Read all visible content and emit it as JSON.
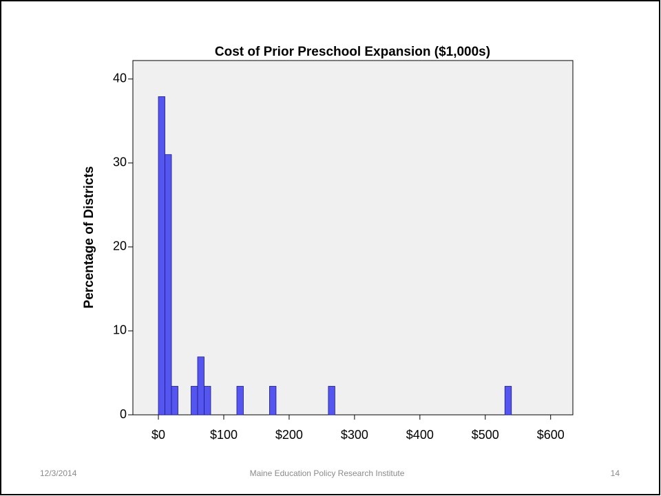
{
  "chart_data": {
    "type": "histogram",
    "title": "Cost of Prior Preschool Expansion ($1,000s)",
    "y_label": "Percentage of Districts",
    "bins": [
      0,
      10,
      20,
      30,
      40,
      50,
      60,
      70,
      80,
      90,
      100,
      110,
      120,
      130,
      140,
      150,
      160,
      170,
      180,
      190,
      200,
      210,
      220,
      230,
      240,
      250,
      260,
      270,
      280,
      290,
      300,
      310,
      320,
      330,
      340,
      350,
      360,
      370,
      380,
      390,
      400,
      410,
      420,
      430,
      440,
      450,
      460,
      470,
      480,
      490,
      500,
      510,
      520,
      530,
      540
    ],
    "values": [
      37.9,
      31.0,
      3.4,
      0,
      0,
      3.4,
      6.9,
      3.4,
      0,
      0,
      0,
      0,
      3.4,
      0,
      0,
      0,
      0,
      3.4,
      0,
      0,
      0,
      0,
      0,
      0,
      0,
      0,
      3.4,
      0,
      0,
      0,
      0,
      0,
      0,
      0,
      0,
      0,
      0,
      0,
      0,
      0,
      0,
      0,
      0,
      0,
      0,
      0,
      0,
      0,
      0,
      0,
      0,
      0,
      0,
      3.4
    ],
    "color": "#5555f0",
    "xlim": [
      -39,
      634
    ],
    "ylim": [
      0,
      42.2
    ],
    "xticks": [
      {
        "value": 0,
        "label": "$0"
      },
      {
        "value": 100,
        "label": "$100"
      },
      {
        "value": 200,
        "label": "$200"
      },
      {
        "value": 300,
        "label": "$300"
      },
      {
        "value": 400,
        "label": "$400"
      },
      {
        "value": 500,
        "label": "$500"
      },
      {
        "value": 600,
        "label": "$600"
      }
    ],
    "yticks": [
      0,
      10,
      20,
      30,
      40
    ]
  },
  "footer": {
    "date": "12/3/2014",
    "organization": "Maine Education Policy Research Institute",
    "page": "14"
  }
}
